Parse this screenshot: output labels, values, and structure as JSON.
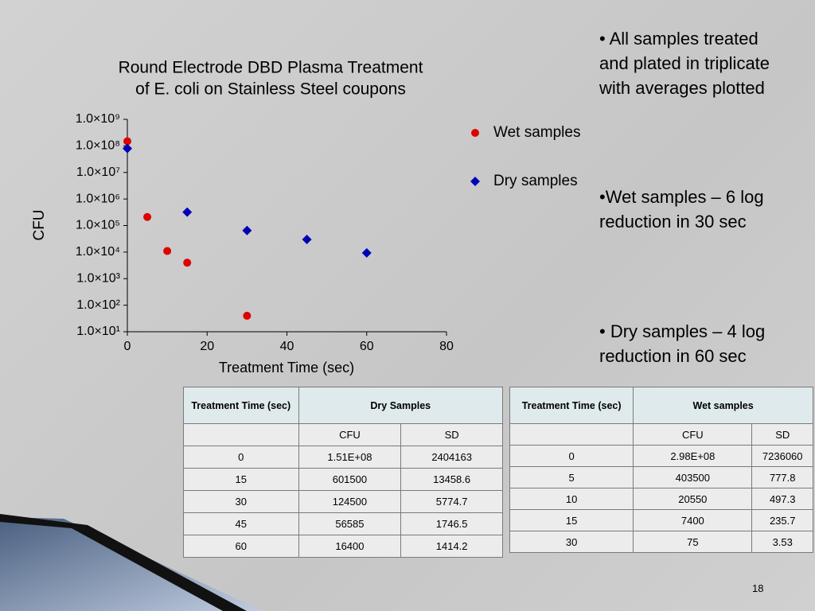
{
  "chart_data": {
    "type": "scatter",
    "title": [
      "Round Electrode DBD Plasma Treatment",
      "of E. coli on Stainless Steel coupons"
    ],
    "x_label": "Treatment Time (sec)",
    "y_label": "CFU",
    "xlim": [
      0,
      80
    ],
    "xticks": [
      0,
      20,
      40,
      60,
      80
    ],
    "ylim": [
      10,
      1000000000
    ],
    "y_scale": "log",
    "yticks": [
      {
        "value": 10,
        "label": "1.0×10¹"
      },
      {
        "value": 100,
        "label": "1.0×10²"
      },
      {
        "value": 1000,
        "label": "1.0×10³"
      },
      {
        "value": 10000,
        "label": "1.0×10⁴"
      },
      {
        "value": 100000,
        "label": "1.0×10⁵"
      },
      {
        "value": 1000000,
        "label": "1.0×10⁶"
      },
      {
        "value": 10000000,
        "label": "1.0×10⁷"
      },
      {
        "value": 100000000,
        "label": "1.0×10⁸"
      },
      {
        "value": 1000000000,
        "label": "1.0×10⁹"
      }
    ],
    "legend": "right",
    "series": [
      {
        "name": "Wet samples",
        "color": "#e00000",
        "marker": "circle",
        "x": [
          0,
          5,
          10,
          15,
          30
        ],
        "values": [
          150000000,
          210000,
          11000,
          4000,
          40
        ]
      },
      {
        "name": "Dry samples",
        "color": "#0000b4",
        "marker": "diamond",
        "x": [
          0,
          15,
          30,
          45,
          60
        ],
        "values": [
          80000000,
          320000,
          65000,
          30000,
          9300
        ]
      }
    ]
  },
  "bullets": [
    [
      "• All samples treated",
      "and plated in triplicate",
      "with averages plotted"
    ],
    [
      "•Wet samples – 6 log",
      "reduction in 30 sec"
    ],
    [
      "• Dry samples – 4 log",
      "reduction in 60 sec"
    ]
  ],
  "tables": [
    {
      "header": [
        "Treatment Time (sec)",
        "Dry Samples"
      ],
      "subheader": [
        "CFU",
        "SD"
      ],
      "rows": [
        [
          "0",
          "1.51E+08",
          "2404163"
        ],
        [
          "15",
          "601500",
          "13458.6"
        ],
        [
          "30",
          "124500",
          "5774.7"
        ],
        [
          "45",
          "56585",
          "1746.5"
        ],
        [
          "60",
          "16400",
          "1414.2"
        ]
      ]
    },
    {
      "header": [
        "Treatment Time (sec)",
        "Wet samples"
      ],
      "subheader": [
        "CFU",
        "SD"
      ],
      "rows": [
        [
          "0",
          "2.98E+08",
          "7236060"
        ],
        [
          "5",
          "403500",
          "777.8"
        ],
        [
          "10",
          "20550",
          "497.3"
        ],
        [
          "15",
          "7400",
          "235.7"
        ],
        [
          "30",
          "75",
          "3.53"
        ]
      ]
    }
  ],
  "page_number": "18"
}
